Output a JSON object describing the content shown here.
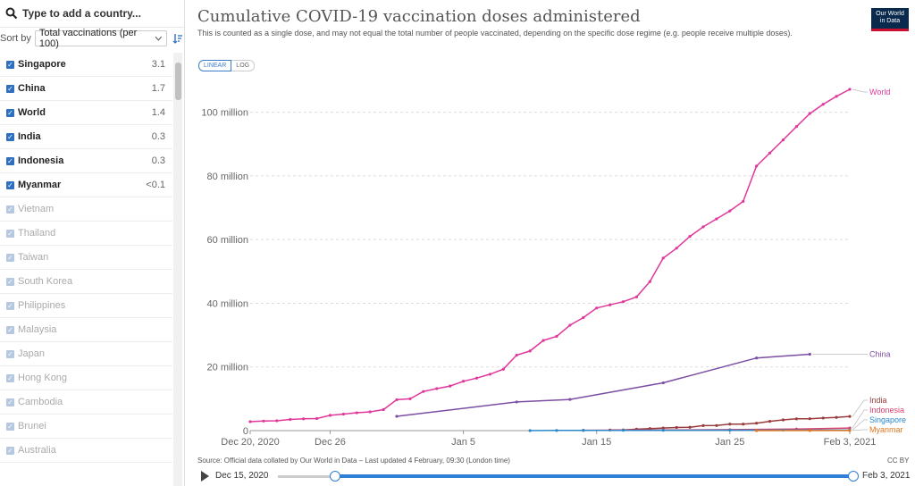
{
  "search": {
    "placeholder": "Type to add a country..."
  },
  "sort": {
    "label": "Sort by",
    "selected": "Total vaccinations (per 100)"
  },
  "countries": [
    {
      "name": "Singapore",
      "value": "3.1",
      "selected": true
    },
    {
      "name": "China",
      "value": "1.7",
      "selected": true
    },
    {
      "name": "World",
      "value": "1.4",
      "selected": true
    },
    {
      "name": "India",
      "value": "0.3",
      "selected": true
    },
    {
      "name": "Indonesia",
      "value": "0.3",
      "selected": true
    },
    {
      "name": "Myanmar",
      "value": "<0.1",
      "selected": true
    },
    {
      "name": "Vietnam",
      "value": "",
      "selected": false
    },
    {
      "name": "Thailand",
      "value": "",
      "selected": false
    },
    {
      "name": "Taiwan",
      "value": "",
      "selected": false
    },
    {
      "name": "South Korea",
      "value": "",
      "selected": false
    },
    {
      "name": "Philippines",
      "value": "",
      "selected": false
    },
    {
      "name": "Malaysia",
      "value": "",
      "selected": false
    },
    {
      "name": "Japan",
      "value": "",
      "selected": false
    },
    {
      "name": "Hong Kong",
      "value": "",
      "selected": false
    },
    {
      "name": "Cambodia",
      "value": "",
      "selected": false
    },
    {
      "name": "Brunei",
      "value": "",
      "selected": false
    },
    {
      "name": "Australia",
      "value": "",
      "selected": false
    }
  ],
  "header": {
    "title": "Cumulative COVID-19 vaccination doses administered",
    "subtitle": "This is counted as a single dose, and may not equal the total number of people vaccinated, depending on the specific dose regime (e.g. people receive multiple doses).",
    "logo_line1": "Our World",
    "logo_line2": "in Data"
  },
  "scale": {
    "linear": "LINEAR",
    "log": "LOG",
    "active": "linear"
  },
  "footer": {
    "source": "Source: Official data collated by Our World in Data – Last updated 4 February, 09:30 (London time)",
    "license": "CC BY"
  },
  "timeline": {
    "start": "Dec 15, 2020",
    "end": "Feb 3, 2021"
  },
  "colors": {
    "World": "#e0389a",
    "China": "#7b4ea3",
    "India": "#9a3c3c",
    "Indonesia": "#d8436f",
    "Singapore": "#2b87c8",
    "Myanmar": "#e0761f"
  },
  "chart_data": {
    "type": "line",
    "title": "Cumulative COVID-19 vaccination doses administered",
    "x_start": "2020-12-20",
    "x_end": "2021-02-03",
    "x_tick_labels": [
      "Dec 20, 2020",
      "Dec 26",
      "Jan 5",
      "Jan 15",
      "Jan 25",
      "Feb 3, 2021"
    ],
    "x_tick_dates": [
      "2020-12-20",
      "2020-12-26",
      "2021-01-05",
      "2021-01-15",
      "2021-01-25",
      "2021-02-03"
    ],
    "y_ticks": [
      0,
      20000000,
      40000000,
      60000000,
      80000000,
      100000000
    ],
    "y_tick_labels": [
      "0",
      "20 million",
      "40 million",
      "60 million",
      "80 million",
      "100 million"
    ],
    "ylim": [
      0,
      110000000
    ],
    "grid": true,
    "series": [
      {
        "name": "World",
        "points": [
          [
            "2020-12-20",
            2800000
          ],
          [
            "2020-12-21",
            3000000
          ],
          [
            "2020-12-22",
            3100000
          ],
          [
            "2020-12-23",
            3500000
          ],
          [
            "2020-12-24",
            3700000
          ],
          [
            "2020-12-25",
            3800000
          ],
          [
            "2020-12-26",
            4800000
          ],
          [
            "2020-12-27",
            5200000
          ],
          [
            "2020-12-28",
            5600000
          ],
          [
            "2020-12-29",
            5900000
          ],
          [
            "2020-12-30",
            6600000
          ],
          [
            "2020-12-31",
            9700000
          ],
          [
            "2021-01-01",
            10000000
          ],
          [
            "2021-01-02",
            12300000
          ],
          [
            "2021-01-03",
            13200000
          ],
          [
            "2021-01-04",
            14000000
          ],
          [
            "2021-01-05",
            15500000
          ],
          [
            "2021-01-06",
            16500000
          ],
          [
            "2021-01-07",
            17700000
          ],
          [
            "2021-01-08",
            19300000
          ],
          [
            "2021-01-09",
            23700000
          ],
          [
            "2021-01-10",
            25000000
          ],
          [
            "2021-01-11",
            28300000
          ],
          [
            "2021-01-12",
            29600000
          ],
          [
            "2021-01-13",
            33100000
          ],
          [
            "2021-01-14",
            35500000
          ],
          [
            "2021-01-15",
            38500000
          ],
          [
            "2021-01-16",
            39500000
          ],
          [
            "2021-01-17",
            40500000
          ],
          [
            "2021-01-18",
            42000000
          ],
          [
            "2021-01-19",
            46800000
          ],
          [
            "2021-01-20",
            54200000
          ],
          [
            "2021-01-21",
            57300000
          ],
          [
            "2021-01-22",
            61000000
          ],
          [
            "2021-01-23",
            64000000
          ],
          [
            "2021-01-24",
            66500000
          ],
          [
            "2021-01-25",
            69000000
          ],
          [
            "2021-01-26",
            72000000
          ],
          [
            "2021-01-27",
            83100000
          ],
          [
            "2021-01-28",
            87200000
          ],
          [
            "2021-01-29",
            91300000
          ],
          [
            "2021-01-30",
            95500000
          ],
          [
            "2021-01-31",
            99600000
          ],
          [
            "2021-02-01",
            102500000
          ],
          [
            "2021-02-02",
            105000000
          ],
          [
            "2021-02-03",
            107200000
          ]
        ]
      },
      {
        "name": "China",
        "points": [
          [
            "2020-12-31",
            4500000
          ],
          [
            "2021-01-09",
            9000000
          ],
          [
            "2021-01-13",
            9800000
          ],
          [
            "2021-01-20",
            15000000
          ],
          [
            "2021-01-27",
            22800000
          ],
          [
            "2021-01-31",
            24000000
          ]
        ]
      },
      {
        "name": "India",
        "points": [
          [
            "2021-01-16",
            190000
          ],
          [
            "2021-01-17",
            230000
          ],
          [
            "2021-01-18",
            450000
          ],
          [
            "2021-01-19",
            630000
          ],
          [
            "2021-01-20",
            800000
          ],
          [
            "2021-01-21",
            990000
          ],
          [
            "2021-01-22",
            1050000
          ],
          [
            "2021-01-23",
            1580000
          ],
          [
            "2021-01-24",
            1600000
          ],
          [
            "2021-01-25",
            2030000
          ],
          [
            "2021-01-26",
            2030000
          ],
          [
            "2021-01-27",
            2330000
          ],
          [
            "2021-01-28",
            2910000
          ],
          [
            "2021-01-29",
            3360000
          ],
          [
            "2021-01-30",
            3700000
          ],
          [
            "2021-01-31",
            3740000
          ],
          [
            "2021-02-01",
            3950000
          ],
          [
            "2021-02-02",
            4150000
          ],
          [
            "2021-02-03",
            4450000
          ]
        ]
      },
      {
        "name": "Indonesia",
        "points": [
          [
            "2021-01-14",
            100000
          ],
          [
            "2021-01-20",
            200000
          ],
          [
            "2021-01-25",
            300000
          ],
          [
            "2021-01-30",
            500000
          ],
          [
            "2021-02-03",
            800000
          ]
        ]
      },
      {
        "name": "Singapore",
        "points": [
          [
            "2021-01-10",
            10000
          ],
          [
            "2021-01-12",
            50000
          ],
          [
            "2021-01-14",
            70000
          ],
          [
            "2021-01-17",
            90000
          ],
          [
            "2021-01-20",
            110000
          ],
          [
            "2021-01-25",
            140000
          ],
          [
            "2021-01-29",
            160000
          ],
          [
            "2021-02-03",
            180000
          ]
        ]
      },
      {
        "name": "Myanmar",
        "points": [
          [
            "2021-01-27",
            2000
          ],
          [
            "2021-01-31",
            20000
          ],
          [
            "2021-02-03",
            40000
          ]
        ]
      }
    ]
  }
}
